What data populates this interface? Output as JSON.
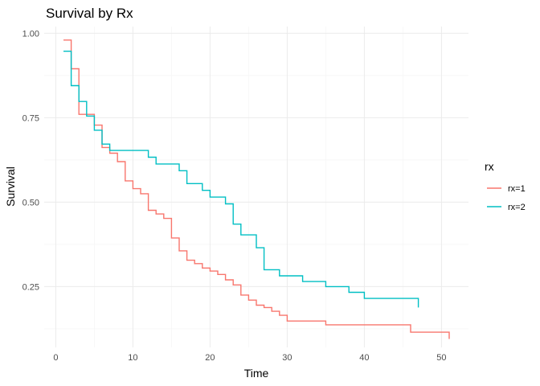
{
  "chart_data": {
    "type": "line",
    "title": "Survival by Rx",
    "xlabel": "Time",
    "ylabel": "Survival",
    "xlim": [
      -1.5,
      53.5
    ],
    "ylim": [
      0.07,
      1.02
    ],
    "x_ticks": [
      0,
      10,
      20,
      30,
      40,
      50
    ],
    "x_tick_labels": [
      "0",
      "10",
      "20",
      "30",
      "40",
      "50"
    ],
    "y_ticks": [
      0.25,
      0.5,
      0.75,
      1.0
    ],
    "y_tick_labels": [
      "0.25",
      "0.50",
      "0.75",
      "1.00"
    ],
    "grid": true,
    "legend": {
      "title": "rx",
      "position": "right"
    },
    "series": [
      {
        "name": "rx=1",
        "color": "#F8766D",
        "x": [
          1,
          2,
          3,
          4,
          5,
          6,
          7,
          8,
          9,
          10,
          11,
          12,
          13,
          14,
          15,
          16,
          17,
          18,
          19,
          20,
          21,
          22,
          23,
          24,
          25,
          26,
          27,
          28,
          29,
          30,
          35,
          46,
          51,
          51
        ],
        "y": [
          0.98,
          0.895,
          0.76,
          0.76,
          0.728,
          0.662,
          0.645,
          0.62,
          0.563,
          0.54,
          0.525,
          0.476,
          0.465,
          0.452,
          0.394,
          0.356,
          0.328,
          0.318,
          0.305,
          0.296,
          0.286,
          0.27,
          0.255,
          0.225,
          0.21,
          0.195,
          0.188,
          0.177,
          0.165,
          0.148,
          0.137,
          0.115,
          0.115,
          0.095
        ]
      },
      {
        "name": "rx=2",
        "color": "#00BFC4",
        "x": [
          1,
          2,
          3,
          4,
          5,
          6,
          7,
          12,
          13,
          16,
          17,
          19,
          20,
          22,
          23,
          24,
          26,
          27,
          29,
          32,
          35,
          38,
          40,
          47,
          47
        ],
        "y": [
          0.947,
          0.845,
          0.798,
          0.755,
          0.713,
          0.672,
          0.653,
          0.633,
          0.613,
          0.593,
          0.555,
          0.535,
          0.515,
          0.495,
          0.435,
          0.403,
          0.365,
          0.3,
          0.282,
          0.265,
          0.25,
          0.233,
          0.215,
          0.215,
          0.188
        ]
      }
    ]
  }
}
